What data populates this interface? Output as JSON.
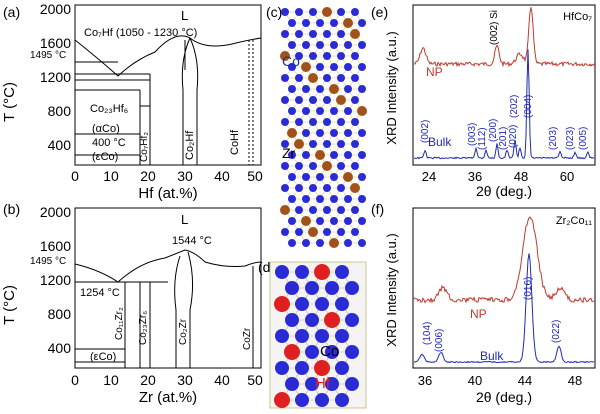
{
  "figure": {
    "panel_a": {
      "label": "(a)",
      "y_axis_label": "T (°C)",
      "x_axis_label": "Hf (at.%)",
      "liquid_label": "L",
      "y_ticks": [
        "2000",
        "1600",
        "1200",
        "800",
        "400"
      ],
      "x_ticks": [
        "0",
        "10",
        "20",
        "30",
        "40",
        "50"
      ],
      "annotations": {
        "co7hf": "Co₇Hf (1050 - 1230 °C)",
        "t1495": "1495 °C",
        "co23hf6": "Co₂₃Hf₆",
        "co7hf2": "Co₇Hf₂",
        "co2hf": "Co₂Hf",
        "cohf": "CoHf",
        "alpha_co": "(αCo)",
        "t400": "400 °C",
        "eps_co": "(εCo)"
      }
    },
    "panel_b": {
      "label": "(b)",
      "y_axis_label": "T (°C)",
      "x_axis_label": "Zr (at.%)",
      "liquid_label": "L",
      "y_ticks": [
        "2000",
        "1600",
        "1200",
        "800",
        "400"
      ],
      "x_ticks": [
        "0",
        "10",
        "20",
        "30",
        "40",
        "50"
      ],
      "annotations": {
        "t1495": "1495 °C",
        "t1544": "1544 °C",
        "t1254": "1254 °C",
        "co11zr2": "Co₁₁Zr₂",
        "co23zr6": "Co₂₃Zr₆",
        "co2zr": "Co₂Zr",
        "cozr": "CoZr",
        "eps_co": "(εCo)"
      }
    },
    "panel_c": {
      "label": "(c)",
      "atom_labels": {
        "co": "Co",
        "zr": "Zr"
      },
      "colors": {
        "co": "#2b2bd6",
        "zr": "#a0521a",
        "bond": "#d8c77a"
      }
    },
    "panel_d": {
      "label": "(d)",
      "atom_labels": {
        "co": "Co",
        "hf": "Hf"
      },
      "colors": {
        "co": "#2b2bd6",
        "hf": "#e02020",
        "bond": "#c8b870"
      }
    },
    "panel_e": {
      "label": "(e)",
      "title": "HfCo₇",
      "y_axis_label": "XRD Intensity (a.u.)",
      "x_axis_label": "2θ (deg.)",
      "x_ticks": [
        "24",
        "36",
        "48",
        "60"
      ],
      "series_labels": {
        "np": "NP",
        "bulk": "Bulk"
      },
      "peak_labels": [
        "(002)",
        "(003)",
        "(112)",
        "(200)",
        "(201)",
        "(020)",
        "(202)",
        "(004)",
        "(203)",
        "(023)",
        "(005)"
      ],
      "si_label": "(002) Si",
      "colors": {
        "np": "#c0392b",
        "bulk": "#1f2ab5"
      }
    },
    "panel_f": {
      "label": "(f)",
      "title": "Zr₂Co₁₁",
      "y_axis_label": "XRD Intensity (a.u.)",
      "x_axis_label": "2θ (deg.)",
      "x_ticks": [
        "36",
        "40",
        "44",
        "48"
      ],
      "series_labels": {
        "np": "NP",
        "bulk": "Bulk"
      },
      "peak_labels": [
        "(104)",
        "(006)",
        "(016)",
        "(022)"
      ],
      "colors": {
        "np": "#c0392b",
        "bulk": "#1f2ab5"
      }
    }
  }
}
